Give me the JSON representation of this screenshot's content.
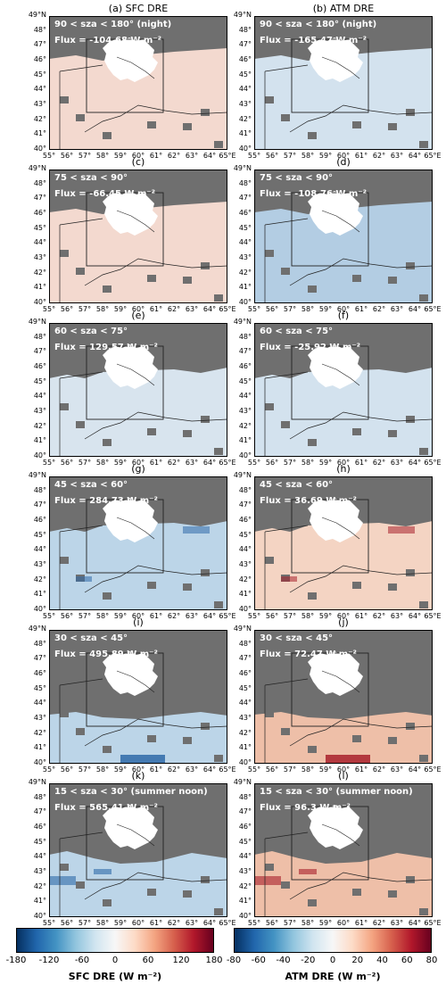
{
  "panels": [
    {
      "letter": "(a)",
      "column_title": "SFC DRE",
      "sza": "90 < sza < 180° (night)",
      "flux": "Flux = -104.68 W m⁻²",
      "var": "sfc",
      "tone": "sfc_pos_light"
    },
    {
      "letter": "(b)",
      "column_title": "ATM DRE",
      "sza": "90 < sza < 180° (night)",
      "flux": "Flux = -165.47 W m⁻²",
      "var": "atm",
      "tone": "atm_neg_light"
    },
    {
      "letter": "(c)",
      "sza": "75 < sza < 90°",
      "flux": "Flux = -66.45 W m⁻²",
      "var": "sfc",
      "tone": "sfc_pos_light"
    },
    {
      "letter": "(d)",
      "sza": "75 < sza < 90°",
      "flux": "Flux = -108.76 W m⁻²",
      "var": "atm",
      "tone": "atm_neg_mid"
    },
    {
      "letter": "(e)",
      "sza": "60 < sza < 75°",
      "flux": "Flux = 129.57 W m⁻²",
      "var": "sfc",
      "tone": "sfc_neg_light"
    },
    {
      "letter": "(f)",
      "sza": "60 < sza < 75°",
      "flux": "Flux = -25.92 W m⁻²",
      "var": "atm",
      "tone": "atm_neg_light"
    },
    {
      "letter": "(g)",
      "sza": "45 < sza < 60°",
      "flux": "Flux = 284.73 W m⁻²",
      "var": "sfc",
      "tone": "sfc_neg_mid"
    },
    {
      "letter": "(h)",
      "sza": "45 < sza < 60°",
      "flux": "Flux = 36.69 W m⁻²",
      "var": "atm",
      "tone": "atm_pos_light"
    },
    {
      "letter": "(i)",
      "sza": "30 < sza < 45°",
      "flux": "Flux = 495.89 W m⁻²",
      "var": "sfc",
      "tone": "sfc_neg_mid"
    },
    {
      "letter": "(j)",
      "sza": "30 < sza < 45°",
      "flux": "Flux = 72.47 W m⁻²",
      "var": "atm",
      "tone": "atm_pos_mid"
    },
    {
      "letter": "(k)",
      "sza": "15 < sza < 30° (summer noon)",
      "flux": "Flux = 565.41 W m⁻²",
      "var": "sfc",
      "tone": "sfc_neg_mid"
    },
    {
      "letter": "(l)",
      "sza": "15 < sza < 30° (summer noon)",
      "flux": "Flux = 96.3 W m⁻²",
      "var": "atm",
      "tone": "atm_pos_mid"
    }
  ],
  "axes": {
    "lat_ticks": [
      "49°N",
      "48°",
      "47°",
      "46°",
      "45°",
      "44°",
      "43°",
      "42°",
      "41°",
      "40°"
    ],
    "lon_ticks": [
      "55°",
      "56°",
      "57°",
      "58°",
      "59°",
      "60°",
      "61°",
      "62°",
      "63°",
      "64°",
      "65°E"
    ],
    "lon_range": [
      55,
      65
    ],
    "lat_range": [
      40,
      49
    ]
  },
  "colorbars": [
    {
      "name": "sfc",
      "label": "SFC DRE (W m⁻²)",
      "ticks": [
        "-180",
        "-120",
        "-60",
        "0",
        "60",
        "120",
        "180"
      ],
      "colormap": "RdBu_r"
    },
    {
      "name": "atm",
      "label": "ATM DRE (W m⁻²)",
      "ticks": [
        "-80",
        "-60",
        "-40",
        "-20",
        "0",
        "20",
        "40",
        "60",
        "80"
      ],
      "colormap": "RdBu_r"
    }
  ],
  "colors": {
    "masked": "#6f6f6f",
    "no_data": "#ffffff",
    "sfc_pos_light": "#f3d9cf",
    "sfc_neg_light": "#d8e4ee",
    "sfc_neg_mid": "#bcd5e8",
    "atm_neg_light": "#d3e2ee",
    "atm_neg_mid": "#b3cde3",
    "atm_pos_light": "#f4d4c3",
    "atm_pos_mid": "#eebfa8",
    "strong_blue": "#2f6aa8",
    "strong_red": "#a8202c"
  }
}
